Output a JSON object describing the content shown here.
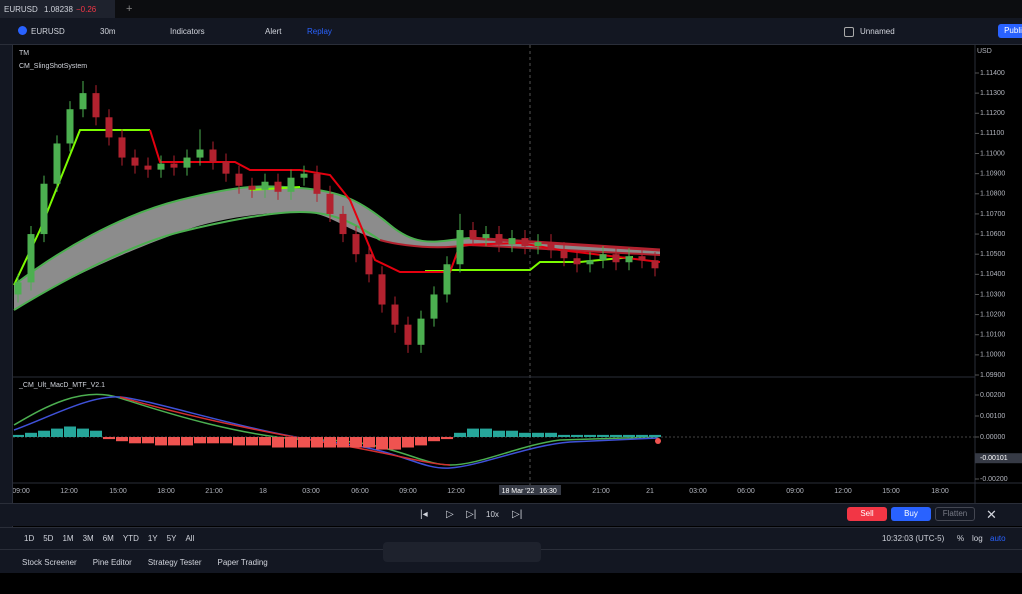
{
  "tab": {
    "symbol": "EURUSD",
    "price": "1.08238",
    "change": "−0.26"
  },
  "toolbar": {
    "symbol": "EURUSD",
    "interval": "30m",
    "indicators": "Indicators",
    "alert": "Alert",
    "replay": "Replay",
    "layout": "Unnamed",
    "publish": "Publi"
  },
  "legend": {
    "main": "TM",
    "indicator": "CM_SlingShotSystem",
    "oscillator": "_CM_Ult_MacD_MTF_V2.1",
    "currency": "USD"
  },
  "price_chart": {
    "yticks": [
      {
        "value": 1.114,
        "label": "1.11400"
      },
      {
        "value": 1.113,
        "label": "1.11300"
      },
      {
        "value": 1.112,
        "label": "1.11200"
      },
      {
        "value": 1.111,
        "label": "1.11100"
      },
      {
        "value": 1.11,
        "label": "1.11000"
      },
      {
        "value": 1.109,
        "label": "1.10900"
      },
      {
        "value": 1.108,
        "label": "1.10800"
      },
      {
        "value": 1.107,
        "label": "1.10700"
      },
      {
        "value": 1.106,
        "label": "1.10600"
      },
      {
        "value": 1.105,
        "label": "1.10500"
      },
      {
        "value": 1.104,
        "label": "1.10400"
      },
      {
        "value": 1.103,
        "label": "1.10300"
      },
      {
        "value": 1.102,
        "label": "1.10200"
      },
      {
        "value": 1.101,
        "label": "1.10100"
      },
      {
        "value": 1.1,
        "label": "1.10000"
      },
      {
        "value": 1.099,
        "label": "1.09900"
      }
    ],
    "up_color": "#4caf50",
    "down_color": "#b2222f",
    "candles": [
      [
        1.103,
        1.104,
        1.1026,
        1.1036
      ],
      [
        1.1036,
        1.1064,
        1.1032,
        1.106
      ],
      [
        1.106,
        1.1089,
        1.1056,
        1.1085
      ],
      [
        1.1085,
        1.1109,
        1.1081,
        1.1105
      ],
      [
        1.1105,
        1.1126,
        1.1101,
        1.1122
      ],
      [
        1.1122,
        1.1136,
        1.1118,
        1.113
      ],
      [
        1.113,
        1.1134,
        1.1114,
        1.1118
      ],
      [
        1.1118,
        1.1122,
        1.1104,
        1.1108
      ],
      [
        1.1108,
        1.1112,
        1.1094,
        1.1098
      ],
      [
        1.1098,
        1.1102,
        1.109,
        1.1094
      ],
      [
        1.1094,
        1.1098,
        1.1088,
        1.1092
      ],
      [
        1.1092,
        1.1099,
        1.1088,
        1.1095
      ],
      [
        1.1095,
        1.1099,
        1.1089,
        1.1093
      ],
      [
        1.1093,
        1.1102,
        1.1089,
        1.1098
      ],
      [
        1.1098,
        1.1112,
        1.1094,
        1.1102
      ],
      [
        1.1102,
        1.1106,
        1.1092,
        1.1096
      ],
      [
        1.1096,
        1.11,
        1.1086,
        1.109
      ],
      [
        1.109,
        1.1094,
        1.108,
        1.1084
      ],
      [
        1.1084,
        1.1088,
        1.1078,
        1.1082
      ],
      [
        1.1082,
        1.109,
        1.1078,
        1.1086
      ],
      [
        1.1086,
        1.109,
        1.1077,
        1.1081
      ],
      [
        1.1081,
        1.1092,
        1.1077,
        1.1088
      ],
      [
        1.1088,
        1.1094,
        1.1084,
        1.109
      ],
      [
        1.109,
        1.1094,
        1.1076,
        1.108
      ],
      [
        1.108,
        1.1084,
        1.1066,
        1.107
      ],
      [
        1.107,
        1.1074,
        1.1056,
        1.106
      ],
      [
        1.106,
        1.1064,
        1.1046,
        1.105
      ],
      [
        1.105,
        1.1054,
        1.1036,
        1.104
      ],
      [
        1.104,
        1.1044,
        1.1021,
        1.1025
      ],
      [
        1.1025,
        1.1029,
        1.1011,
        1.1015
      ],
      [
        1.1015,
        1.1019,
        1.1001,
        1.1005
      ],
      [
        1.1005,
        1.1022,
        1.1001,
        1.1018
      ],
      [
        1.1018,
        1.1034,
        1.1014,
        1.103
      ],
      [
        1.103,
        1.1049,
        1.1026,
        1.1045
      ],
      [
        1.1045,
        1.107,
        1.1041,
        1.1062
      ],
      [
        1.1062,
        1.1066,
        1.1054,
        1.1058
      ],
      [
        1.1058,
        1.1064,
        1.1054,
        1.106
      ],
      [
        1.106,
        1.1064,
        1.1051,
        1.1055
      ],
      [
        1.1055,
        1.1062,
        1.1051,
        1.1058
      ],
      [
        1.1058,
        1.1062,
        1.105,
        1.1054
      ],
      [
        1.1054,
        1.106,
        1.105,
        1.1056
      ],
      [
        1.1056,
        1.106,
        1.1048,
        1.1052
      ],
      [
        1.1052,
        1.1056,
        1.1044,
        1.1048
      ],
      [
        1.1048,
        1.1052,
        1.1041,
        1.1045
      ],
      [
        1.1045,
        1.1051,
        1.1041,
        1.1047
      ],
      [
        1.1047,
        1.1054,
        1.1043,
        1.105
      ],
      [
        1.105,
        1.1054,
        1.1042,
        1.1046
      ],
      [
        1.1046,
        1.1053,
        1.1042,
        1.1049
      ],
      [
        1.1049,
        1.1053,
        1.1043,
        1.1047
      ],
      [
        1.1047,
        1.1051,
        1.1039,
        1.1043
      ]
    ]
  },
  "macd": {
    "yticks": [
      {
        "value": 0.002,
        "label": "0.00200"
      },
      {
        "value": 0.001,
        "label": "0.00100"
      },
      {
        "value": 0,
        "label": "0.00000"
      },
      {
        "value": -0.002,
        "label": "-0.00200"
      }
    ],
    "current": {
      "value": -0.00101,
      "label": "-0.00101"
    },
    "pos_color": "#26a69a",
    "neg_color": "#ef5350",
    "histogram": [
      0.0001,
      0.0002,
      0.0003,
      0.0004,
      0.0005,
      0.0004,
      0.0003,
      -0.0001,
      -0.0002,
      -0.0003,
      -0.0003,
      -0.0004,
      -0.0004,
      -0.0004,
      -0.0003,
      -0.0003,
      -0.0003,
      -0.0004,
      -0.0004,
      -0.0004,
      -0.0005,
      -0.0005,
      -0.0005,
      -0.0005,
      -0.0005,
      -0.0005,
      -0.0005,
      -0.0005,
      -0.0006,
      -0.0006,
      -0.0005,
      -0.0004,
      -0.0002,
      -0.0001,
      0.0002,
      0.0004,
      0.0004,
      0.0003,
      0.0003,
      0.0002,
      0.0002,
      0.0002,
      0.0001,
      0.0001,
      0.0001,
      0.0001,
      0.0001,
      0.0001,
      0.0001,
      0.0001
    ]
  },
  "time_axis": [
    "09:00",
    "12:00",
    "15:00",
    "18:00",
    "21:00",
    "18",
    "03:00",
    "06:00",
    "09:00",
    "12:00",
    "18 Mar '22",
    "16:30",
    "21:00",
    "21",
    "03:00",
    "06:00",
    "09:00",
    "12:00",
    "15:00",
    "18:00"
  ],
  "replay_bar": {
    "speed": "10x",
    "sell": "Sell",
    "buy": "Buy",
    "flatten": "Flatten"
  },
  "range_bar": {
    "ranges": [
      "1D",
      "5D",
      "1M",
      "3M",
      "6M",
      "YTD",
      "1Y",
      "5Y",
      "All"
    ],
    "clock": "10:32:03 (UTC-5)",
    "percent": "%",
    "log": "log",
    "auto": "auto"
  },
  "footer": {
    "tabs": [
      "Stock Screener",
      "Pine Editor",
      "Strategy Tester",
      "Paper Trading"
    ]
  }
}
